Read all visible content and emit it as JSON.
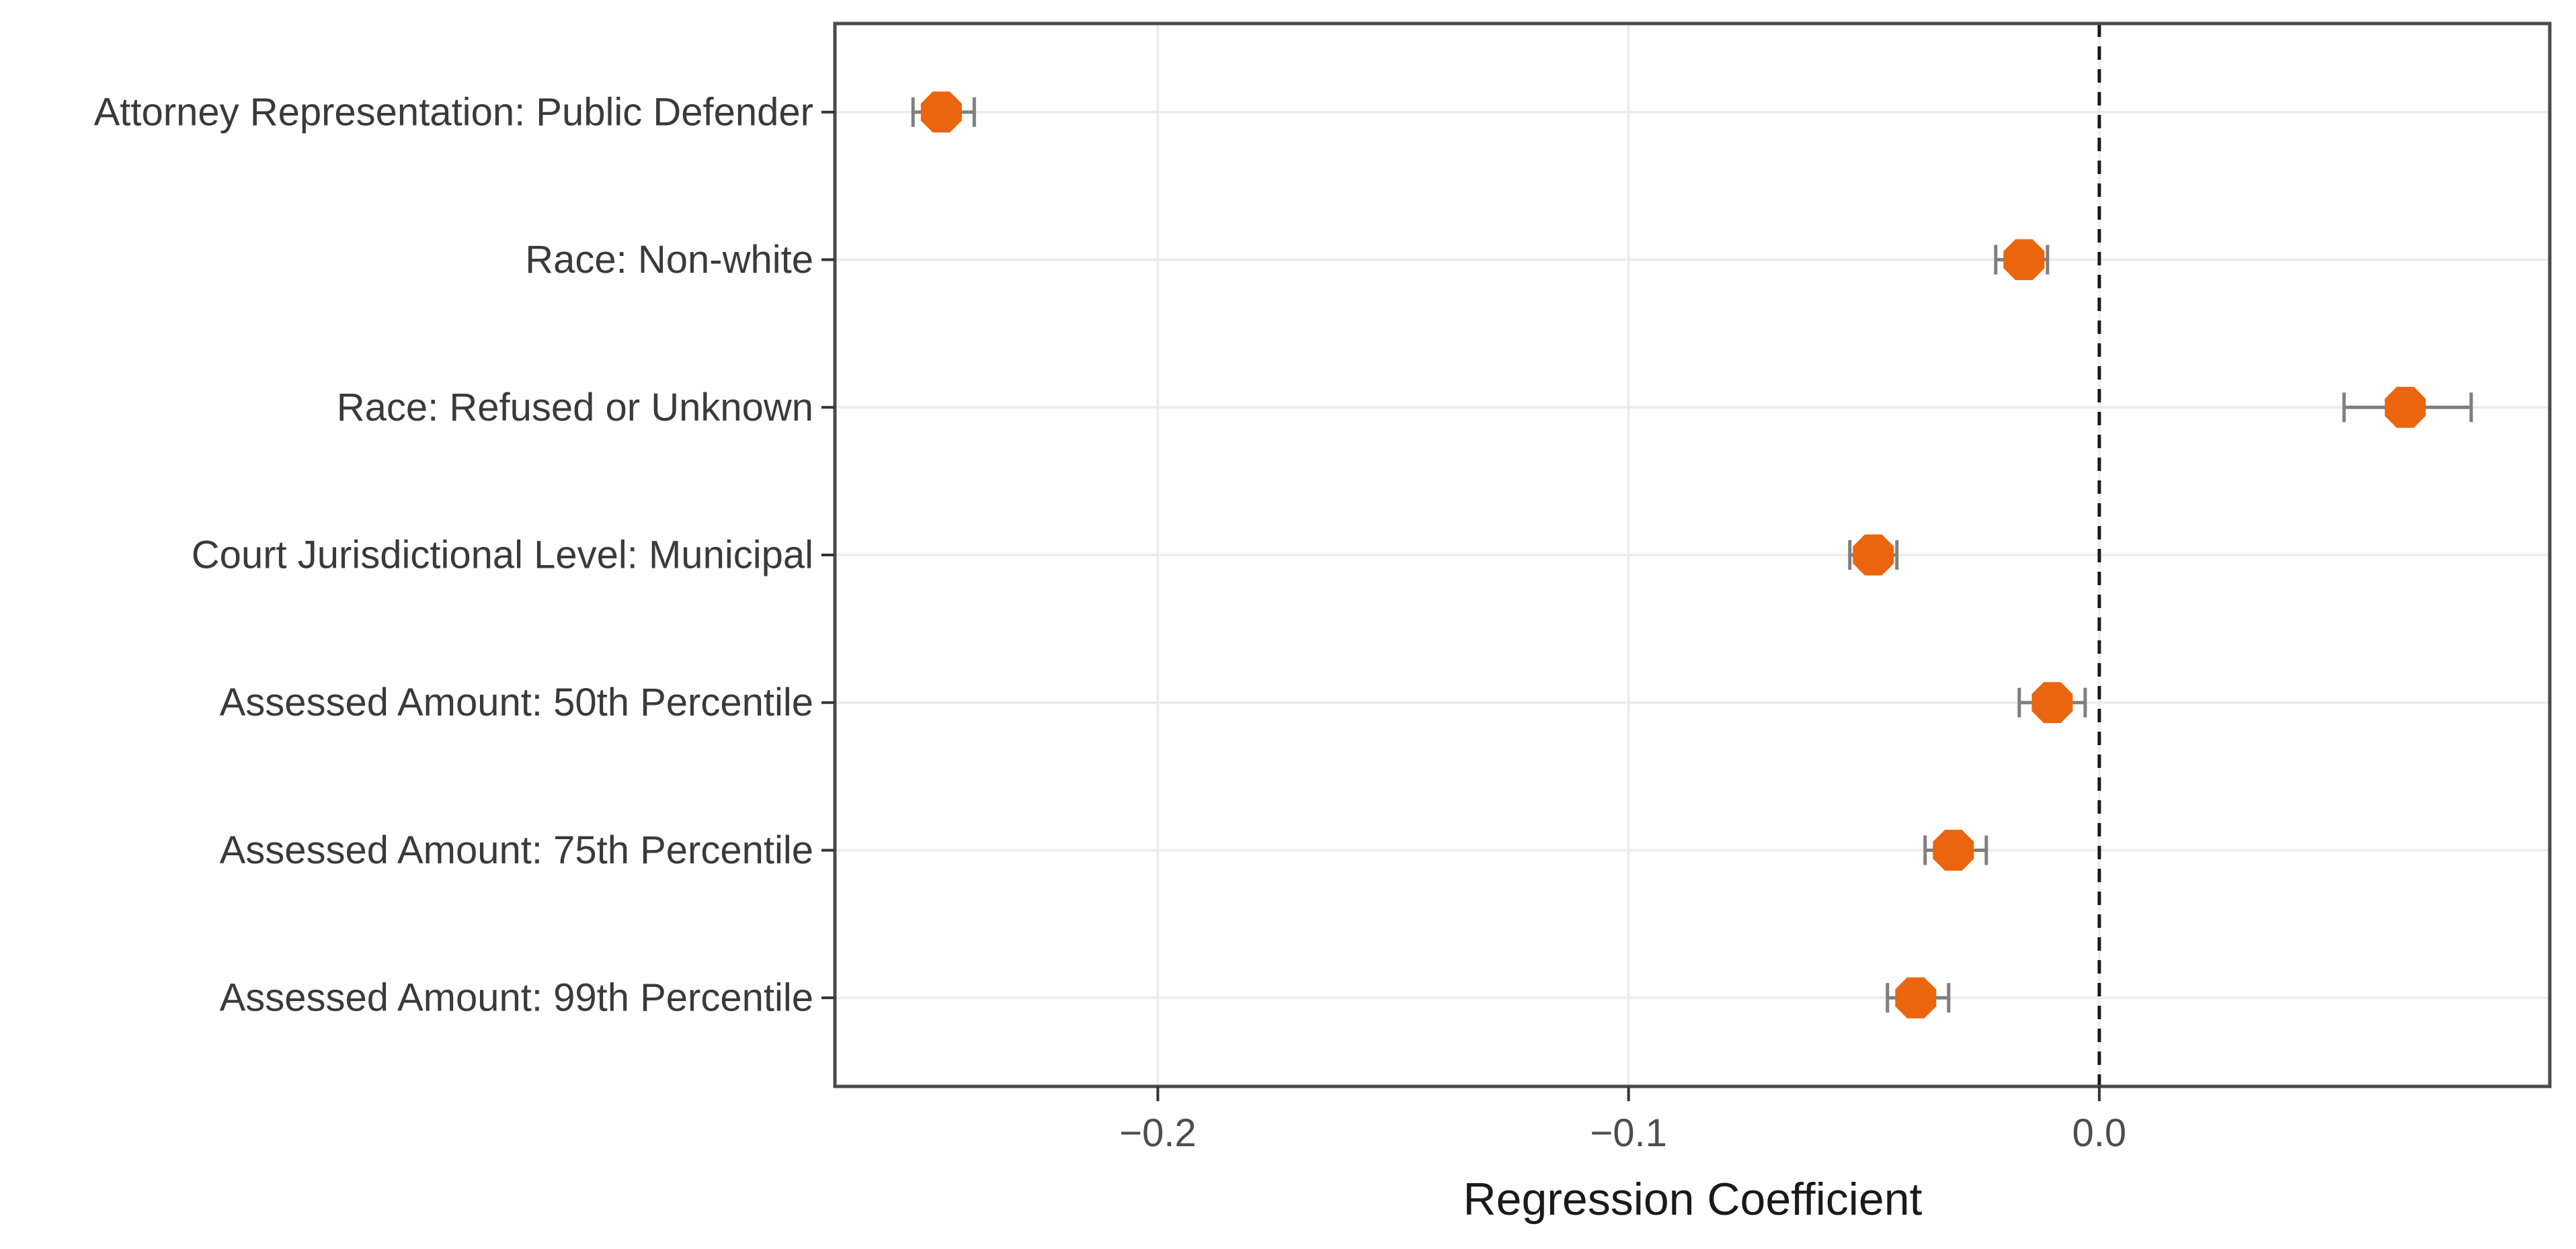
{
  "chart_data": {
    "type": "scatter",
    "subtype": "coefficient-dot-whisker",
    "title": "",
    "xlabel": "Regression Coefficient",
    "ylabel": "",
    "x_ticks": [
      -0.2,
      -0.1,
      0.0
    ],
    "x_tick_labels": [
      "−0.2",
      "−0.1",
      "0.0"
    ],
    "xlim": [
      -0.2686,
      0.0957
    ],
    "zero_reference_line": 0.0,
    "grid": true,
    "legend": "none",
    "categories": [
      "Attorney Representation: Public Defender",
      "Race: Non-white",
      "Race: Refused or Unknown",
      "Court Jurisdictional Level: Municipal",
      "Assessed Amount: 50th Percentile",
      "Assessed Amount: 75th Percentile",
      "Assessed Amount: 99th Percentile"
    ],
    "points": [
      {
        "label": "Attorney Representation: Public Defender",
        "estimate": -0.246,
        "ci_low": -0.252,
        "ci_high": -0.239
      },
      {
        "label": "Race: Non-white",
        "estimate": -0.016,
        "ci_low": -0.022,
        "ci_high": -0.011
      },
      {
        "label": "Race: Refused or Unknown",
        "estimate": 0.065,
        "ci_low": 0.052,
        "ci_high": 0.079
      },
      {
        "label": "Court Jurisdictional Level: Municipal",
        "estimate": -0.048,
        "ci_low": -0.053,
        "ci_high": -0.043
      },
      {
        "label": "Assessed Amount: 50th Percentile",
        "estimate": -0.01,
        "ci_low": -0.017,
        "ci_high": -0.003
      },
      {
        "label": "Assessed Amount: 75th Percentile",
        "estimate": -0.031,
        "ci_low": -0.037,
        "ci_high": -0.024
      },
      {
        "label": "Assessed Amount: 99th Percentile",
        "estimate": -0.039,
        "ci_low": -0.045,
        "ci_high": -0.032
      }
    ]
  },
  "colors": {
    "marker": "#EA650D",
    "error_bar": "#7F7F7F",
    "gridline": "#EBEBEB",
    "panel_border": "#4A4A4A",
    "axis_tick": "#333333",
    "axis_text": "#4D4D4D",
    "axis_title": "#1A1A1A",
    "zero_line": "#1A1A1A",
    "background": "#FFFFFF"
  }
}
